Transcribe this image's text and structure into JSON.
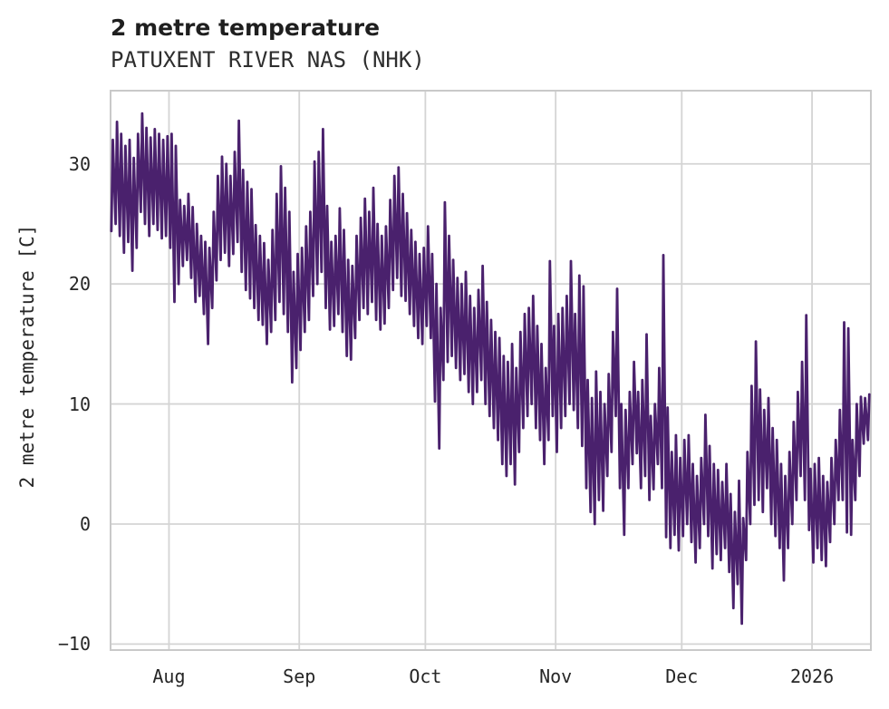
{
  "header": {
    "title": "2 metre temperature",
    "subtitle": "PATUXENT RIVER NAS (NHK)"
  },
  "chart_data": {
    "type": "line",
    "title": "2 metre temperature",
    "subtitle": "PATUXENT RIVER NAS (NHK)",
    "xlabel": "",
    "ylabel": "2 metre temperature [C]",
    "legend": "none",
    "grid": "on",
    "line_color": "#4a216d",
    "grid_color": "#d4d4d4",
    "border_color": "#c9c9c9",
    "text_color": "#262626",
    "background": "#ffffff",
    "x_domain_days_from_aug1": [
      -13.9,
      167
    ],
    "y_domain": [
      -10.5,
      36.1
    ],
    "yticks": [
      {
        "value": 30,
        "label": "30"
      },
      {
        "value": 20,
        "label": "20"
      },
      {
        "value": 10,
        "label": "10"
      },
      {
        "value": 0,
        "label": "0"
      },
      {
        "value": -10,
        "label": "−10"
      }
    ],
    "xticks": [
      {
        "t": 0,
        "label": "Aug"
      },
      {
        "t": 31,
        "label": "Sep"
      },
      {
        "t": 61,
        "label": "Oct"
      },
      {
        "t": 92,
        "label": "Nov"
      },
      {
        "t": 122,
        "label": "Dec"
      },
      {
        "t": 153,
        "label": "2026"
      }
    ],
    "sampling": "daily [min,max] pairs starting 14 days before Aug tick, drawn as diurnal zigzag",
    "daily_min_max": [
      [
        24.4,
        32
      ],
      [
        25,
        33.5
      ],
      [
        24,
        32.5
      ],
      [
        22.6,
        31.5
      ],
      [
        23.5,
        32
      ],
      [
        21.1,
        30.5
      ],
      [
        23,
        32.5
      ],
      [
        26,
        34.2
      ],
      [
        25,
        33
      ],
      [
        24,
        32.2
      ],
      [
        25,
        32.9
      ],
      [
        24.5,
        32.5
      ],
      [
        23.8,
        32
      ],
      [
        24,
        32.3
      ],
      [
        23,
        32.5
      ],
      [
        18.5,
        31.5
      ],
      [
        20,
        27
      ],
      [
        21.5,
        26.5
      ],
      [
        22,
        27.5
      ],
      [
        20.5,
        26.4
      ],
      [
        18.5,
        25
      ],
      [
        19,
        24
      ],
      [
        17.5,
        23.5
      ],
      [
        15,
        23
      ],
      [
        18,
        26
      ],
      [
        20.3,
        29
      ],
      [
        22,
        30.6
      ],
      [
        22.6,
        30
      ],
      [
        21.5,
        29
      ],
      [
        22.5,
        31
      ],
      [
        23.5,
        33.6
      ],
      [
        21,
        29.5
      ],
      [
        19.5,
        28.5
      ],
      [
        18.8,
        27.9
      ],
      [
        18,
        24.9
      ],
      [
        17,
        24
      ],
      [
        16.6,
        23.4
      ],
      [
        15,
        22
      ],
      [
        16,
        24.5
      ],
      [
        17,
        27.5
      ],
      [
        18.5,
        29.8
      ],
      [
        17.5,
        28
      ],
      [
        16,
        26
      ],
      [
        11.8,
        21
      ],
      [
        13,
        22.5
      ],
      [
        14.5,
        23
      ],
      [
        16,
        24.8
      ],
      [
        17,
        26
      ],
      [
        19,
        30.2
      ],
      [
        20,
        31
      ],
      [
        21,
        32.9
      ],
      [
        18,
        26.5
      ],
      [
        16.2,
        23.5
      ],
      [
        16.5,
        24
      ],
      [
        17.5,
        26.3
      ],
      [
        16,
        24.5
      ],
      [
        14,
        22
      ],
      [
        13.7,
        21.5
      ],
      [
        15.5,
        24
      ],
      [
        17,
        25.5
      ],
      [
        18,
        27.1
      ],
      [
        17.5,
        26
      ],
      [
        18.5,
        28
      ],
      [
        17,
        25
      ],
      [
        16.2,
        24
      ],
      [
        16.7,
        24.8
      ],
      [
        18,
        27
      ],
      [
        19.5,
        29
      ],
      [
        20.5,
        29.7
      ],
      [
        19,
        27.5
      ],
      [
        18.6,
        25.9
      ],
      [
        17.5,
        24.5
      ],
      [
        16.5,
        23.5
      ],
      [
        15.5,
        22.5
      ],
      [
        15,
        23
      ],
      [
        16.5,
        24.8
      ],
      [
        15.5,
        22.5
      ],
      [
        10.2,
        20
      ],
      [
        6.3,
        18
      ],
      [
        12,
        26.8
      ],
      [
        13.5,
        24
      ],
      [
        14,
        22
      ],
      [
        13,
        20.5
      ],
      [
        12,
        20
      ],
      [
        12.5,
        21
      ],
      [
        11,
        19
      ],
      [
        10,
        18
      ],
      [
        11,
        19.5
      ],
      [
        12,
        21.5
      ],
      [
        10,
        18.5
      ],
      [
        9,
        17
      ],
      [
        8,
        16
      ],
      [
        7,
        15.5
      ],
      [
        5,
        14
      ],
      [
        4,
        13.5
      ],
      [
        5,
        15
      ],
      [
        3.3,
        13
      ],
      [
        6,
        16
      ],
      [
        8,
        17.5
      ],
      [
        9,
        18
      ],
      [
        10,
        19
      ],
      [
        8,
        16.5
      ],
      [
        7,
        15
      ],
      [
        5,
        13
      ],
      [
        7,
        21.9
      ],
      [
        9,
        16.5
      ],
      [
        6,
        17.5
      ],
      [
        8,
        18
      ],
      [
        9,
        19
      ],
      [
        10,
        21.9
      ],
      [
        9.5,
        17.5
      ],
      [
        8,
        20.7
      ],
      [
        6.5,
        19.8
      ],
      [
        3,
        12
      ],
      [
        1,
        10.5
      ],
      [
        0,
        12.7
      ],
      [
        2,
        11
      ],
      [
        1.1,
        10
      ],
      [
        4,
        12.5
      ],
      [
        6,
        16
      ],
      [
        9,
        19.6
      ],
      [
        3,
        10
      ],
      [
        -0.9,
        9.5
      ],
      [
        3,
        11
      ],
      [
        5,
        13.5
      ],
      [
        5.9,
        11
      ],
      [
        3,
        12
      ],
      [
        4,
        15.8
      ],
      [
        2,
        9
      ],
      [
        2.9,
        10
      ],
      [
        5,
        13
      ],
      [
        3,
        22.4
      ],
      [
        -1.1,
        9.7
      ],
      [
        -2,
        6
      ],
      [
        -0.9,
        7.4
      ],
      [
        -2.2,
        5.5
      ],
      [
        -1,
        7
      ],
      [
        0,
        7.4
      ],
      [
        -1.5,
        5
      ],
      [
        -3.2,
        4
      ],
      [
        -2,
        5.5
      ],
      [
        0,
        9.1
      ],
      [
        -1,
        6.5
      ],
      [
        -3.7,
        5
      ],
      [
        -2.5,
        4.5
      ],
      [
        -3,
        3.5
      ],
      [
        -2,
        5
      ],
      [
        -4,
        2.5
      ],
      [
        -7,
        1
      ],
      [
        -5,
        3.6
      ],
      [
        -8.3,
        0.5
      ],
      [
        -3,
        6
      ],
      [
        0,
        11.5
      ],
      [
        1.6,
        15.2
      ],
      [
        2,
        11.2
      ],
      [
        1,
        9.5
      ],
      [
        3,
        10.5
      ],
      [
        0,
        8
      ],
      [
        -1,
        7
      ],
      [
        -2,
        5
      ],
      [
        -4.7,
        4
      ],
      [
        -2,
        6
      ],
      [
        0,
        8.5
      ],
      [
        2,
        11
      ],
      [
        4,
        13.5
      ],
      [
        2,
        17.4
      ],
      [
        -0.5,
        4.6
      ],
      [
        -3.2,
        5
      ],
      [
        -2,
        5.5
      ],
      [
        -3,
        4
      ],
      [
        -3.5,
        3.5
      ],
      [
        -1.5,
        5.5
      ],
      [
        0,
        7
      ],
      [
        2,
        9.5
      ],
      [
        2,
        16.8
      ],
      [
        -0.7,
        16.3
      ],
      [
        -0.9,
        7
      ],
      [
        2,
        10
      ],
      [
        4,
        10.6
      ],
      [
        6.7,
        10.5
      ],
      [
        7,
        10.8
      ]
    ]
  }
}
